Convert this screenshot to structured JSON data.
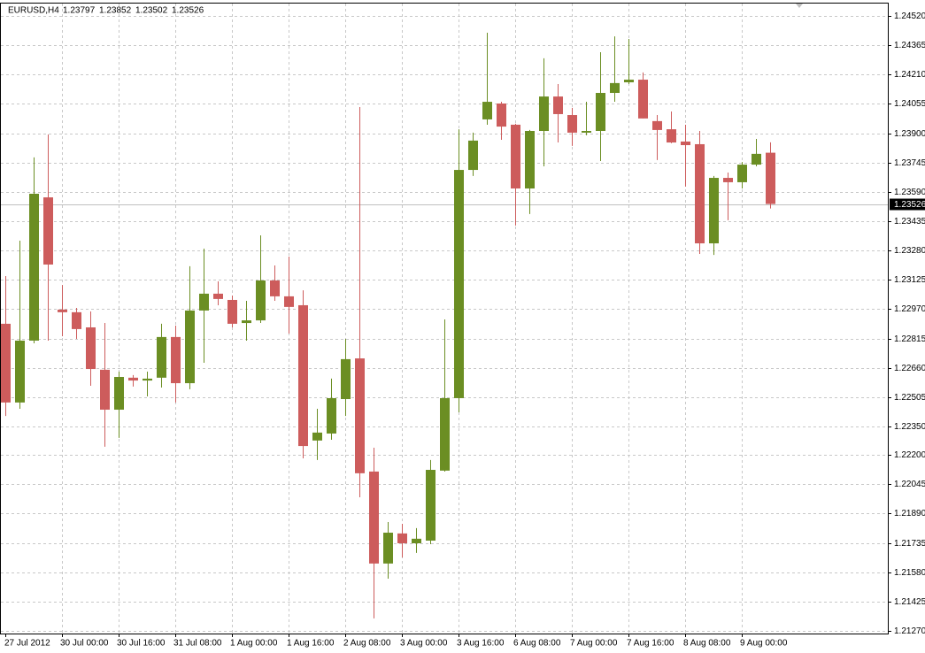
{
  "chart_data": {
    "type": "candlestick",
    "title": "EURUSD,H4",
    "categories": [
      "27 Jul 2012",
      null,
      null,
      null,
      "30 Jul 00:00",
      null,
      null,
      null,
      "30 Jul 16:00",
      null,
      null,
      null,
      "31 Jul 08:00",
      null,
      null,
      null,
      "1 Aug 00:00",
      null,
      null,
      null,
      "1 Aug 16:00",
      null,
      null,
      null,
      "2 Aug 08:00",
      null,
      null,
      null,
      "3 Aug 00:00",
      null,
      null,
      null,
      "3 Aug 16:00",
      null,
      null,
      null,
      "6 Aug 08:00",
      null,
      null,
      null,
      "7 Aug 00:00",
      null,
      null,
      null,
      "7 Aug 16:00",
      null,
      null,
      null,
      "8 Aug 08:00",
      null,
      null,
      null,
      "9 Aug 00:00",
      null,
      null
    ],
    "open": [
      1.22893,
      1.22477,
      1.22804,
      1.23561,
      1.22968,
      1.22954,
      1.22874,
      1.2265,
      1.22439,
      1.22608,
      1.22593,
      1.22608,
      1.22823,
      1.22579,
      1.22963,
      1.23052,
      1.23019,
      1.22897,
      1.22911,
      1.23122,
      1.23038,
      1.22991,
      1.22276,
      1.22313,
      1.22495,
      1.2271,
      1.22112,
      1.21626,
      1.21785,
      1.21733,
      1.21747,
      1.22117,
      1.225,
      1.23706,
      1.23973,
      1.24057,
      1.23945,
      1.23608,
      1.23912,
      1.24094,
      1.23996,
      1.23903,
      1.23912,
      1.24113,
      1.24169,
      1.24183,
      1.23964,
      1.23921,
      1.23856,
      1.23842,
      1.23318,
      1.23664,
      1.23641,
      1.23734,
      1.23797
    ],
    "high": [
      1.23145,
      1.23332,
      1.23772,
      1.23893,
      1.23098,
      1.22977,
      1.22958,
      1.22897,
      1.2264,
      1.22622,
      1.2264,
      1.22893,
      1.22883,
      1.23197,
      1.2329,
      1.23117,
      1.23042,
      1.23014,
      1.2336,
      1.23201,
      1.23248,
      1.2307,
      1.22444,
      1.22603,
      1.22813,
      1.24038,
      1.22238,
      1.21845,
      1.21836,
      1.21813,
      1.22173,
      1.22916,
      1.23921,
      1.23903,
      1.24431,
      1.24066,
      1.2395,
      1.23917,
      1.24296,
      1.2416,
      1.24034,
      1.24066,
      1.24328,
      1.24412,
      1.24398,
      1.24221,
      1.23996,
      1.24015,
      1.23945,
      1.23912,
      1.23674,
      1.23692,
      1.23748,
      1.2387,
      1.23852
    ],
    "low": [
      1.22406,
      1.22444,
      1.2279,
      1.22804,
      1.22827,
      1.22813,
      1.22565,
      1.22243,
      1.2229,
      1.22561,
      1.22509,
      1.22556,
      1.22477,
      1.22547,
      1.22687,
      1.22991,
      1.22874,
      1.22804,
      1.22897,
      1.23014,
      1.22841,
      1.22182,
      1.22173,
      1.2228,
      1.22406,
      1.21976,
      1.21336,
      1.21546,
      1.21658,
      1.21682,
      1.21728,
      1.22112,
      1.22425,
      1.23674,
      1.23945,
      1.23865,
      1.23412,
      1.23473,
      1.23725,
      1.23851,
      1.23833,
      1.23889,
      1.23753,
      1.24066,
      1.2416,
      1.23978,
      1.23758,
      1.23847,
      1.23618,
      1.23262,
      1.23257,
      1.2344,
      1.23608,
      1.23725,
      1.23502
    ],
    "close": [
      1.22477,
      1.22804,
      1.2358,
      1.23206,
      1.22954,
      1.22865,
      1.22654,
      1.22439,
      1.22612,
      1.22593,
      1.22603,
      1.22823,
      1.22579,
      1.22963,
      1.23052,
      1.23024,
      1.22893,
      1.22911,
      1.23122,
      1.23038,
      1.22982,
      1.22247,
      1.22318,
      1.225,
      1.22706,
      1.22103,
      1.21626,
      1.21789,
      1.21733,
      1.21757,
      1.22121,
      1.225,
      1.23706,
      1.23861,
      1.24066,
      1.23935,
      1.23608,
      1.23912,
      1.24094,
      1.24001,
      1.23903,
      1.23912,
      1.24113,
      1.24165,
      1.24183,
      1.23978,
      1.23917,
      1.23851,
      1.23837,
      1.23318,
      1.23664,
      1.23641,
      1.23734,
      1.23791,
      1.23526
    ],
    "up_color": "#6b8e23",
    "down_color": "#cd5c5c",
    "ylim": [
      1.21256,
      1.2459
    ],
    "yticks": [
      {
        "value": 1.2452,
        "label": "1.24520"
      },
      1.24365,
      {
        "value": 1.2421,
        "label": "1.24210"
      },
      {
        "value": 1.24055,
        "label": "1.24055"
      },
      {
        "value": 1.239,
        "label": "1.23900"
      },
      1.23745,
      {
        "value": 1.2359,
        "label": "1.23590"
      },
      1.23435,
      {
        "value": 1.2328,
        "label": "1.23280"
      },
      1.23125,
      {
        "value": 1.2297,
        "label": "1.22970"
      },
      1.22815,
      {
        "value": 1.2266,
        "label": "1.22660"
      },
      1.22505,
      {
        "value": 1.2235,
        "label": "1.22350"
      },
      {
        "value": 1.222,
        "label": "1.22200"
      },
      1.22045,
      {
        "value": 1.2189,
        "label": "1.21890"
      },
      1.21735,
      {
        "value": 1.2158,
        "label": "1.21580"
      },
      1.21425,
      {
        "value": 1.2127,
        "label": "1.21270"
      }
    ],
    "grid": true
  }
}
